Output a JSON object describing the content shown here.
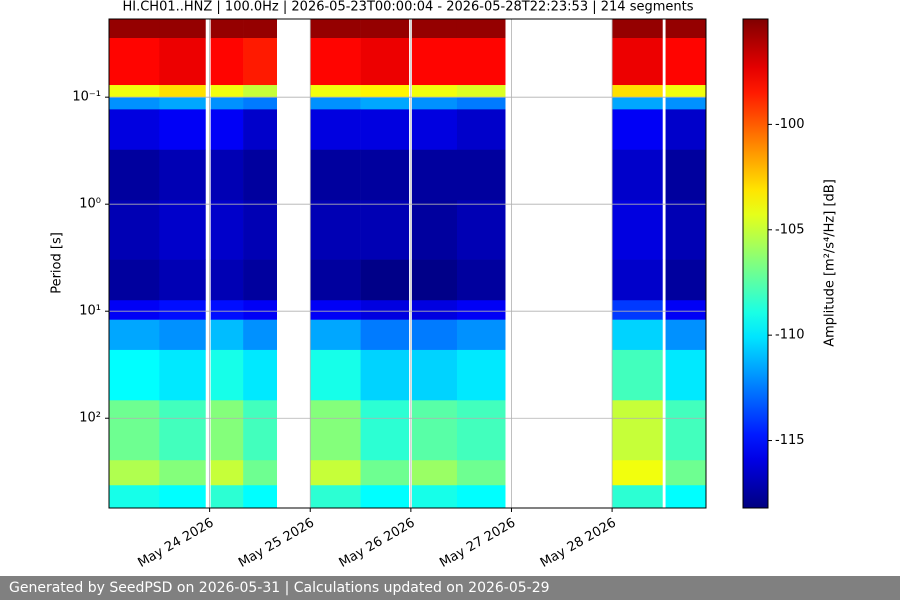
{
  "chart_data": {
    "type": "heatmap",
    "title": "HI.CH01..HNZ | 100.0Hz | 2026-05-23T00:00:04 - 2026-05-28T22:23:53 | 214 segments",
    "y_label": "Period [s]",
    "colorbar_label": "Amplitude [m²/s⁴/Hz] [dB]",
    "colormap": "jet",
    "x_edges": [
      "2026-05-23T00:00:04",
      "2026-05-23T12:00",
      "2026-05-23T23:00",
      "2026-05-24T00:15",
      "2026-05-24T08:00",
      "2026-05-24T16:00",
      "2026-05-25T00:00",
      "2026-05-25T12:00",
      "2026-05-25T23:30",
      "2026-05-26T00:15",
      "2026-05-26T11:00",
      "2026-05-26T22:30",
      "2026-05-28T00:00",
      "2026-05-28T12:00",
      "2026-05-28T12:45",
      "2026-05-28T22:23:53"
    ],
    "y_edges": [
      0.0186,
      0.028,
      0.077,
      0.1,
      0.13,
      0.31,
      0.92,
      3.3,
      7.9,
      12,
      23,
      68,
      247,
      423,
      690
    ],
    "z": [
      [
        -95.5,
        -95.5,
        null,
        -95.5,
        -95.5,
        null,
        -95.5,
        -95.5,
        null,
        -95.5,
        -95.5,
        null,
        -95.5,
        null,
        -95.5
      ],
      [
        -98,
        -97.5,
        null,
        -98,
        -98.5,
        null,
        -98,
        -97.5,
        null,
        -98,
        -98,
        null,
        -97.5,
        null,
        -98
      ],
      [
        -104,
        -103,
        null,
        -104,
        -105,
        null,
        -104,
        -103.5,
        null,
        -104,
        -104.5,
        null,
        -103,
        null,
        -104
      ],
      [
        -112,
        -111.5,
        null,
        -112,
        -112.5,
        null,
        -112,
        -111.5,
        null,
        -112,
        -112.5,
        null,
        -111.5,
        null,
        -112
      ],
      [
        -116,
        -115.5,
        null,
        -115.5,
        -116.5,
        null,
        -116,
        -116,
        null,
        -116,
        -116.5,
        null,
        -115.5,
        null,
        -116.5
      ],
      [
        -117.5,
        -117,
        null,
        -117,
        -117.5,
        null,
        -117.5,
        -117.5,
        null,
        -117.5,
        -117.5,
        null,
        -116.5,
        null,
        -117.5
      ],
      [
        -117,
        -116.5,
        null,
        -116.5,
        -117,
        null,
        -117,
        -117,
        null,
        -117.5,
        -117,
        null,
        -116,
        null,
        -117
      ],
      [
        -117.5,
        -117,
        null,
        -117,
        -117.5,
        null,
        -117.5,
        -118,
        null,
        -118,
        -117.5,
        null,
        -116.5,
        null,
        -117.5
      ],
      [
        -115.5,
        -115,
        null,
        -115,
        -115.5,
        null,
        -115.5,
        -116,
        null,
        -116,
        -115.5,
        null,
        -114,
        null,
        -115.5
      ],
      [
        -111.5,
        -112,
        null,
        -111,
        -112,
        null,
        -111.5,
        -112.5,
        null,
        -112.5,
        -112,
        null,
        -110.5,
        null,
        -112
      ],
      [
        -109.5,
        -110,
        null,
        -109,
        -110,
        null,
        -109,
        -110.5,
        null,
        -110.5,
        -110,
        null,
        -108,
        null,
        -110
      ],
      [
        -107,
        -108,
        null,
        -106.5,
        -108,
        null,
        -106.5,
        -108.5,
        null,
        -107.5,
        -108,
        null,
        -105,
        null,
        -108
      ],
      [
        -105.5,
        -106.5,
        null,
        -105,
        -107,
        null,
        -105,
        -107,
        null,
        -106,
        -107,
        null,
        -104,
        null,
        -107
      ],
      [
        -109,
        -109.5,
        null,
        -108.5,
        -109.5,
        null,
        -108.5,
        -109.5,
        null,
        -109,
        -109.5,
        null,
        -108.5,
        null,
        -109.5
      ]
    ],
    "xlim": [
      "2026-05-23T00:00:04",
      "2026-05-28T22:23:53"
    ],
    "xticks": [
      {
        "value": "2026-05-24T00:00",
        "label": "May 24 2026"
      },
      {
        "value": "2026-05-25T00:00",
        "label": "May 25 2026"
      },
      {
        "value": "2026-05-26T00:00",
        "label": "May 26 2026"
      },
      {
        "value": "2026-05-27T00:00",
        "label": "May 27 2026"
      },
      {
        "value": "2026-05-28T00:00",
        "label": "May 28 2026"
      }
    ],
    "ylim": [
      0.0186,
      690
    ],
    "y_log": true,
    "y_inverted": true,
    "yticks": [
      {
        "value": 0.1,
        "label": "10⁻¹"
      },
      {
        "value": 1,
        "label": "10⁰"
      },
      {
        "value": 10,
        "label": "10¹"
      },
      {
        "value": 100,
        "label": "10²"
      }
    ],
    "clim": [
      -118.2,
      -95
    ],
    "cticks": [
      -100,
      -105,
      -110,
      -115
    ],
    "grid": true
  },
  "footer": {
    "text": "Generated by SeedPSD on 2026-05-31 | Calculations updated on 2026-05-29"
  }
}
